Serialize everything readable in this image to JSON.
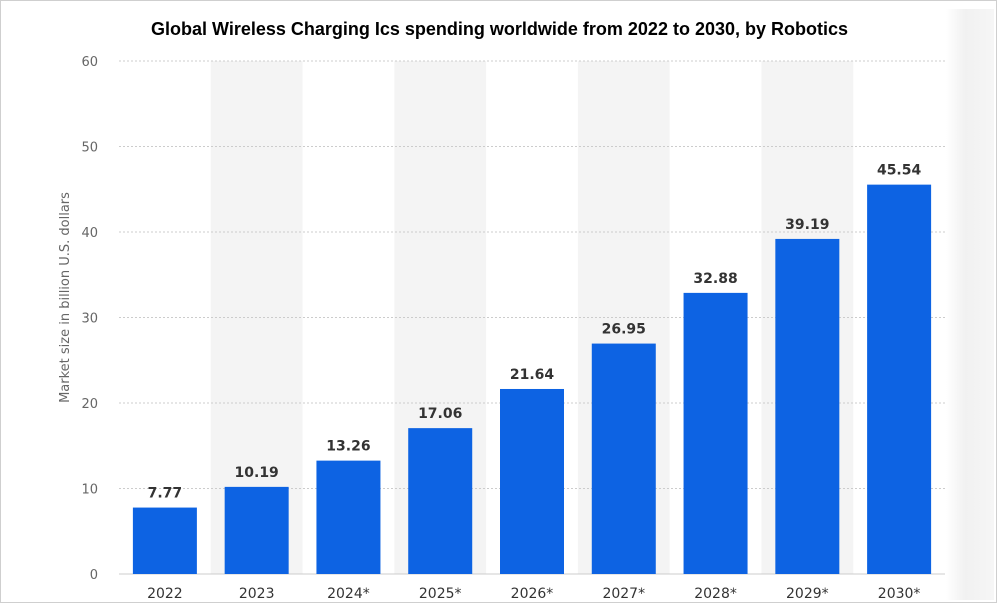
{
  "chart_data": {
    "type": "bar",
    "title": "Global Wireless Charging Ics spending worldwide from 2022 to 2030, by Robotics",
    "xlabel": "",
    "ylabel": "Market size in billion U.S. dollars",
    "categories": [
      "2022",
      "2023",
      "2024*",
      "2025*",
      "2026*",
      "2027*",
      "2028*",
      "2029*",
      "2030*"
    ],
    "values": [
      7.77,
      10.19,
      13.26,
      17.06,
      21.64,
      26.95,
      32.88,
      39.19,
      45.54
    ],
    "value_labels": [
      "7.77",
      "10.19",
      "13.26",
      "17.06",
      "21.64",
      "26.95",
      "32.88",
      "39.19",
      "45.54"
    ],
    "ylim": [
      0,
      60
    ],
    "yticks": [
      0,
      10,
      20,
      30,
      40,
      50,
      60
    ],
    "ytick_labels": [
      "0",
      "10",
      "20",
      "30",
      "40",
      "50",
      "60"
    ],
    "grid": true,
    "legend": "none",
    "bar_color": "#0d63e3",
    "alt_band_color": "#f4f4f4",
    "grid_color": "#cccccc"
  }
}
